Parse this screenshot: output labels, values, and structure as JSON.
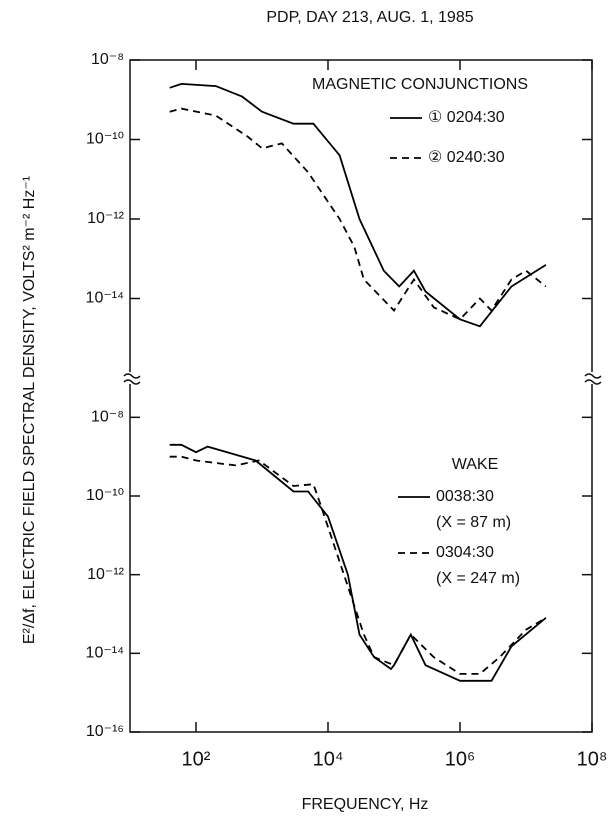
{
  "title": "PDP,  DAY 213,  AUG. 1, 1985",
  "x_label": "FREQUENCY,  Hz",
  "y_label": "E²/Δf,  ELECTRIC FIELD SPECTRAL DENSITY,  VOLTS² m⁻² Hz⁻¹",
  "chart_data": [
    {
      "type": "line",
      "log_x": true,
      "log_y": true,
      "legend_title": "MAGNETIC CONJUNCTIONS",
      "xlim": [
        10,
        100000000
      ],
      "xticks": [
        {
          "value": 100,
          "label": "10²"
        },
        {
          "value": 10000,
          "label": "10⁴"
        },
        {
          "value": 1000000,
          "label": "10⁶"
        },
        {
          "value": 100000000,
          "label": "10⁸"
        }
      ],
      "ylim": [
        1e-16,
        1e-08
      ],
      "yticks": [
        {
          "value": 1e-08,
          "label": "10⁻⁸"
        },
        {
          "value": 1e-10,
          "label": "10⁻¹⁰"
        },
        {
          "value": 1e-12,
          "label": "10⁻¹²"
        },
        {
          "value": 1e-14,
          "label": "10⁻¹⁴"
        }
      ],
      "series": [
        {
          "name": "① 0204:30",
          "color": "#000000",
          "linestyle": "solid",
          "x": [
            40,
            60,
            200,
            500,
            1000,
            3000,
            6000,
            15000,
            30000,
            70000,
            120000,
            200000,
            300000,
            1000000,
            2000000,
            6000000,
            20000000
          ],
          "values": [
            2e-09,
            2.5e-09,
            2.2e-09,
            1.2e-09,
            5e-10,
            2.5e-10,
            2.5e-10,
            4e-11,
            1e-12,
            5e-14,
            2e-14,
            5e-14,
            1.5e-14,
            3e-15,
            2e-15,
            2e-14,
            7e-14
          ]
        },
        {
          "name": "② 0240:30",
          "color": "#000000",
          "linestyle": "dashed",
          "x": [
            40,
            60,
            200,
            600,
            1000,
            2000,
            5000,
            15000,
            25000,
            35000,
            100000,
            200000,
            400000,
            1000000,
            2000000,
            3000000,
            6000000,
            10000000,
            20000000
          ],
          "values": [
            5e-10,
            6e-10,
            4e-10,
            1.2e-10,
            6e-11,
            8e-11,
            1.5e-11,
            1e-12,
            2e-13,
            3e-14,
            5e-15,
            3e-14,
            6e-15,
            3e-15,
            1e-14,
            5e-15,
            3e-14,
            5e-14,
            2e-14
          ]
        }
      ]
    },
    {
      "type": "line",
      "log_x": true,
      "log_y": true,
      "legend_title": "WAKE",
      "xlim": [
        10,
        100000000
      ],
      "xticks": [
        {
          "value": 100,
          "label": "10²"
        },
        {
          "value": 10000,
          "label": "10⁴"
        },
        {
          "value": 1000000,
          "label": "10⁶"
        },
        {
          "value": 100000000,
          "label": "10⁸"
        }
      ],
      "ylim": [
        1e-16,
        1e-07
      ],
      "yticks": [
        {
          "value": 1e-08,
          "label": "10⁻⁸"
        },
        {
          "value": 1e-10,
          "label": "10⁻¹⁰"
        },
        {
          "value": 1e-12,
          "label": "10⁻¹²"
        },
        {
          "value": 1e-14,
          "label": "10⁻¹⁴"
        },
        {
          "value": 1e-16,
          "label": "10⁻¹⁶"
        }
      ],
      "series": [
        {
          "name": "0038:30",
          "detail": "(X = 87 m)",
          "color": "#000000",
          "linestyle": "solid",
          "x": [
            40,
            60,
            100,
            150,
            800,
            3000,
            5000,
            10000,
            20000,
            30000,
            50000,
            90000,
            100000,
            180000,
            300000,
            1000000,
            3000000,
            6000000,
            20000000
          ],
          "values": [
            2e-09,
            2e-09,
            1.3e-09,
            1.8e-09,
            8e-10,
            1.3e-10,
            1.3e-10,
            3e-11,
            1e-12,
            3e-14,
            8e-15,
            4e-15,
            5e-15,
            3e-14,
            5e-15,
            2e-15,
            2e-15,
            1.5e-14,
            8e-14
          ]
        },
        {
          "name": "0304:30",
          "detail": "(X = 247 m)",
          "color": "#000000",
          "linestyle": "dashed",
          "x": [
            40,
            60,
            100,
            400,
            900,
            3000,
            6000,
            8000,
            20000,
            35000,
            50000,
            100000,
            180000,
            400000,
            1000000,
            2000000,
            4000000,
            10000000,
            20000000
          ],
          "values": [
            1e-09,
            1e-09,
            8e-10,
            6e-10,
            8e-10,
            1.8e-10,
            2e-10,
            5e-11,
            5e-13,
            3e-14,
            8e-15,
            5e-15,
            3e-14,
            8e-15,
            3e-15,
            3e-15,
            8e-15,
            4e-14,
            8e-14
          ]
        }
      ]
    }
  ]
}
